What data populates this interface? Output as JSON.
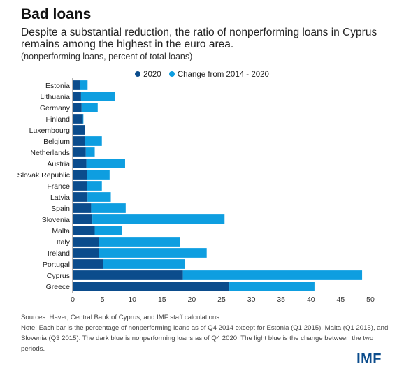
{
  "header": {
    "title": "Bad loans",
    "subtitle": "Despite a substantial reduction, the ratio of nonperforming loans in Cyprus remains among the highest in the euro area.",
    "unit": "(nonperforming loans, percent of total loans)"
  },
  "footer": {
    "source": "Sources: Haver, Central Bank of Cyprus, and IMF staff calculations.",
    "note": "Note: Each bar is the percentage of nonperforming loans as of Q4 2014 except for Estonia (Q1 2015), Malta (Q1 2015), and Slovenia (Q3 2015). The dark blue is nonperforming loans as of Q4 2020. The light blue is the change between the two periods.",
    "logo_text": "IMF"
  },
  "colors": {
    "dark": "#0b4c8c",
    "light": "#0e9ee0",
    "axis": "#666666"
  },
  "chart_data": {
    "type": "bar",
    "orientation": "horizontal",
    "stacked": true,
    "categories": [
      "Estonia",
      "Lithuania",
      "Germany",
      "Finland",
      "Luxembourg",
      "Belgium",
      "Netherlands",
      "Austria",
      "Slovak Republic",
      "France",
      "Latvia",
      "Spain",
      "Slovenia",
      "Malta",
      "Italy",
      "Ireland",
      "Portugal",
      "Cyprus",
      "Greece"
    ],
    "series": [
      {
        "name": "2020",
        "color": "#0b4c8c",
        "values": [
          1.2,
          1.4,
          1.5,
          1.7,
          2.0,
          2.1,
          2.2,
          2.3,
          2.4,
          2.4,
          2.5,
          3.1,
          3.3,
          3.7,
          4.4,
          4.4,
          5.1,
          18.5,
          26.3
        ]
      },
      {
        "name": "Change from 2014 - 2020",
        "color": "#0e9ee0",
        "values": [
          1.3,
          5.7,
          2.7,
          0.1,
          0.1,
          2.8,
          1.5,
          6.5,
          3.8,
          2.5,
          3.9,
          5.8,
          22.2,
          4.6,
          13.6,
          18.1,
          13.7,
          30.1,
          14.3
        ]
      }
    ],
    "xlim": [
      0,
      50
    ],
    "xticks": [
      0,
      5,
      10,
      15,
      20,
      25,
      30,
      35,
      40,
      45,
      50
    ],
    "legend_position": "top",
    "grid": false
  }
}
